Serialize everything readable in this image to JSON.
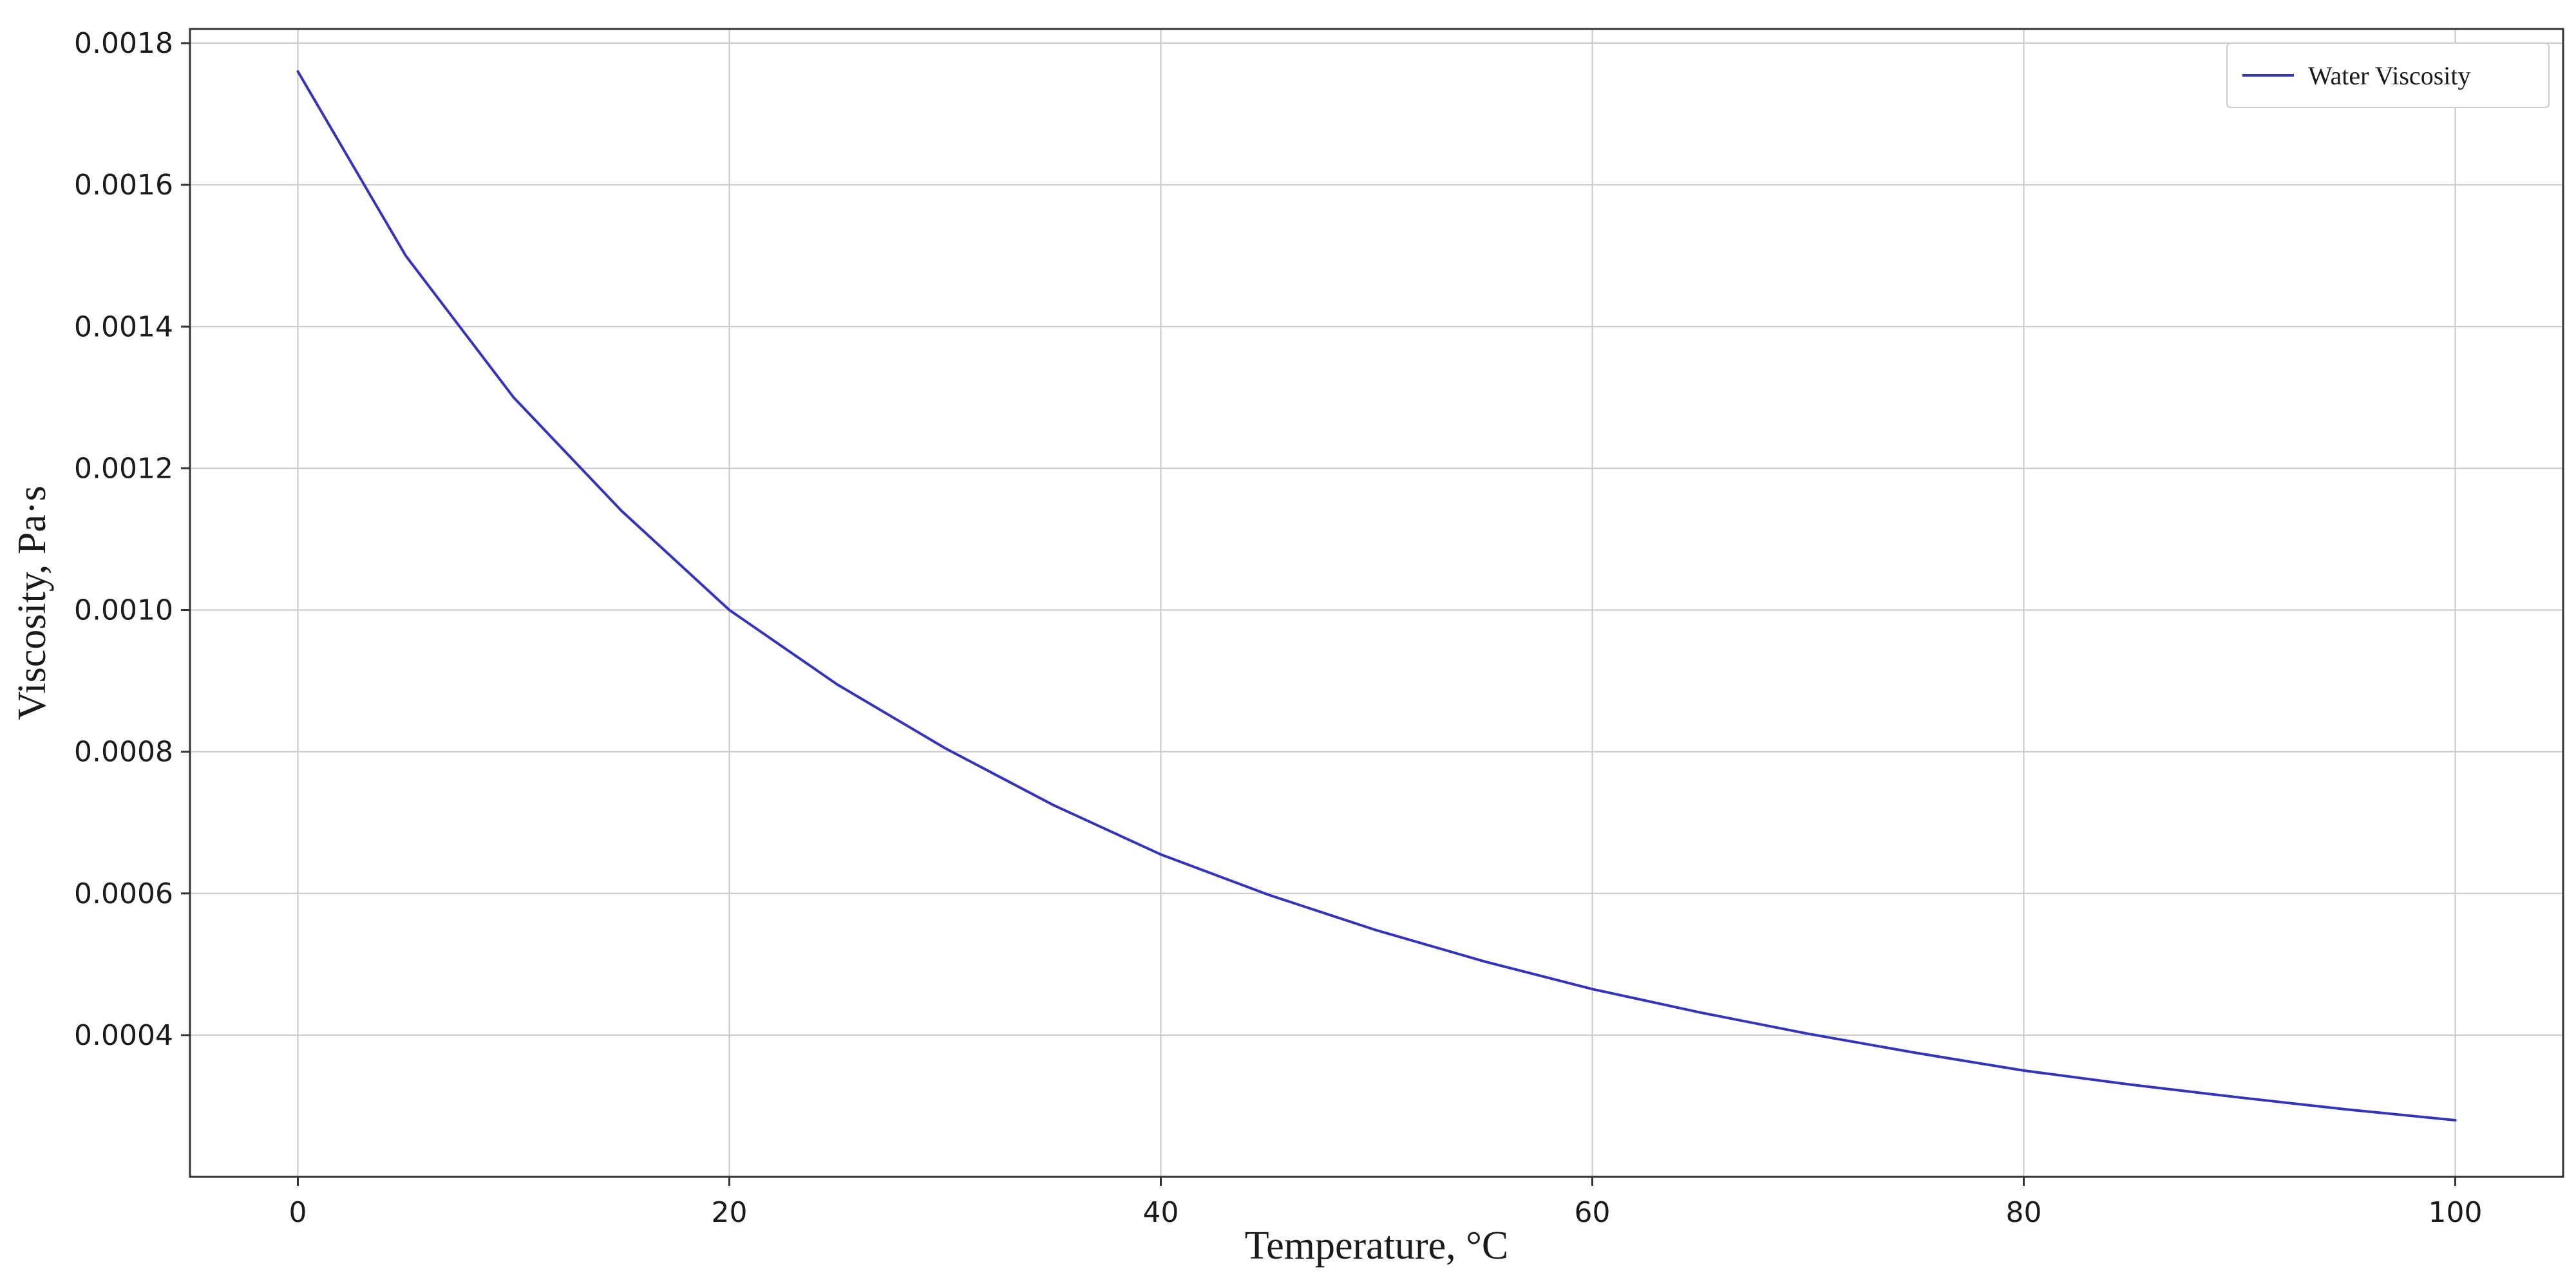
{
  "chart_data": {
    "type": "line",
    "xlabel": "Temperature, °C",
    "ylabel": "Viscosity, Pa·s",
    "xlim": [
      -5,
      105
    ],
    "ylim": [
      0.0002,
      0.00182
    ],
    "x_ticks": [
      0,
      20,
      40,
      60,
      80,
      100
    ],
    "x_tick_labels": [
      "0",
      "20",
      "40",
      "60",
      "80",
      "100"
    ],
    "y_ticks": [
      0.0004,
      0.0006,
      0.0008,
      0.001,
      0.0012,
      0.0014,
      0.0016,
      0.0018
    ],
    "y_tick_labels": [
      "0.0004",
      "0.0006",
      "0.0008",
      "0.0010",
      "0.0012",
      "0.0014",
      "0.0016",
      "0.0018"
    ],
    "grid": true,
    "legend_position": "top-right",
    "series": [
      {
        "name": "Water Viscosity",
        "color": "#3333bb",
        "x": [
          0,
          5,
          10,
          15,
          20,
          25,
          30,
          35,
          40,
          45,
          50,
          55,
          60,
          65,
          70,
          75,
          80,
          85,
          90,
          95,
          100
        ],
        "y": [
          0.00176,
          0.0015,
          0.0013,
          0.00114,
          0.001,
          0.000895,
          0.000805,
          0.000725,
          0.000655,
          0.000598,
          0.000548,
          0.000504,
          0.000465,
          0.000432,
          0.000402,
          0.000375,
          0.00035,
          0.00033,
          0.000312,
          0.000295,
          0.00028
        ]
      }
    ]
  }
}
